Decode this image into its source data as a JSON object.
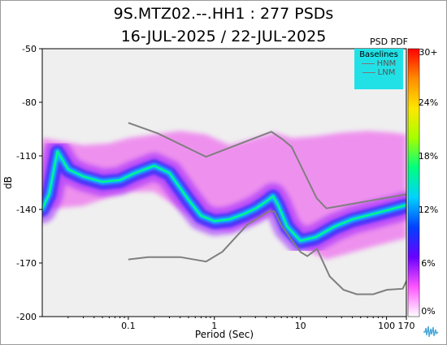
{
  "title_line1": "9S.MTZ02.--.HH1 : 277 PSDs",
  "title_line2": "16-JUL-2025 / 22-JUL-2025",
  "colorbar": {
    "label": "PSD PDF",
    "ticks": [
      "0%",
      "6%",
      "12%",
      "18%",
      "24%",
      "30+"
    ],
    "values": [
      0,
      6,
      12,
      18,
      24,
      30
    ],
    "colors": [
      "#ffffff",
      "#ff55ff",
      "#6a00ff",
      "#0040ff",
      "#00d2ff",
      "#00ff7f",
      "#a6ff00",
      "#ffe600",
      "#ff8c00",
      "#ff0000"
    ]
  },
  "legend": {
    "title": "Baselines",
    "items": [
      "HNM",
      "LNM"
    ],
    "background": "#22e1e6"
  },
  "chart_data": {
    "type": "heatmap",
    "xlabel": "Period (Sec)",
    "ylabel": "dB",
    "xscale": "log",
    "xlim": [
      0.01,
      170
    ],
    "ylim": [
      -200,
      -50
    ],
    "xticks": [
      "0.1",
      "1",
      "10",
      "100",
      "170"
    ],
    "xtick_values": [
      0.1,
      1,
      10,
      100,
      170
    ],
    "yticks": [
      "-50",
      "-80",
      "-110",
      "-140",
      "-170",
      "-200"
    ],
    "ytick_values": [
      -50,
      -80,
      -110,
      -140,
      -170,
      -200
    ],
    "background": "#efefef",
    "series": [
      {
        "name": "HNM",
        "x": [
          0.1,
          0.22,
          0.8,
          3.8,
          4.6,
          6.3,
          7.9,
          15.4,
          20,
          354.8
        ],
        "y": [
          -91.5,
          -97.4,
          -110.5,
          -98.0,
          -96.5,
          -101.0,
          -105.0,
          -133.7,
          -139.4,
          -128.8
        ]
      },
      {
        "name": "LNM",
        "x": [
          0.1,
          0.17,
          0.4,
          0.8,
          1.24,
          2.4,
          4.3,
          5.0,
          6.0,
          10.0,
          12.0,
          15.6,
          21.9,
          31.6,
          45.0,
          70.0,
          101.0,
          154.0,
          328.0
        ],
        "y": [
          -168.0,
          -166.7,
          -166.7,
          -169.2,
          -163.7,
          -148.6,
          -141.1,
          -141.1,
          -149.0,
          -163.8,
          -166.2,
          -162.1,
          -177.5,
          -185.0,
          -187.5,
          -187.5,
          -185.0,
          -184.4,
          -151.9
        ]
      }
    ],
    "density_mode": {
      "x": [
        0.01,
        0.012,
        0.015,
        0.02,
        0.03,
        0.05,
        0.08,
        0.12,
        0.2,
        0.3,
        0.5,
        0.7,
        1.0,
        1.5,
        2.2,
        3.0,
        4.0,
        4.8,
        5.5,
        7.0,
        10.0,
        15.0,
        25.0,
        40.0,
        70.0,
        120.0,
        170.0
      ],
      "y": [
        -140,
        -132,
        -108,
        -118,
        -122,
        -125,
        -124,
        -120,
        -116,
        -120,
        -135,
        -144,
        -147,
        -146,
        -143,
        -140,
        -136,
        -133,
        -138,
        -150,
        -158,
        -156,
        -150,
        -146,
        -143,
        -140,
        -138
      ]
    },
    "density_upper": {
      "x": [
        0.01,
        0.03,
        0.06,
        0.1,
        0.2,
        0.4,
        0.8,
        1.5,
        3.0,
        5.0,
        8.0,
        15.0,
        30.0,
        60.0,
        120.0,
        170.0
      ],
      "y": [
        -100,
        -104,
        -103,
        -100,
        -98,
        -96,
        -98,
        -104,
        -100,
        -97,
        -100,
        -99,
        -97,
        -96,
        -97,
        -98
      ]
    },
    "density_lower": {
      "x": [
        0.01,
        0.03,
        0.06,
        0.1,
        0.2,
        0.4,
        0.8,
        1.5,
        3.0,
        5.0,
        8.0,
        12.0,
        20.0,
        40.0,
        80.0,
        170.0
      ],
      "y": [
        -140,
        -138,
        -133,
        -130,
        -130,
        -140,
        -150,
        -152,
        -147,
        -142,
        -153,
        -163,
        -168,
        -164,
        -160,
        -156
      ]
    }
  }
}
